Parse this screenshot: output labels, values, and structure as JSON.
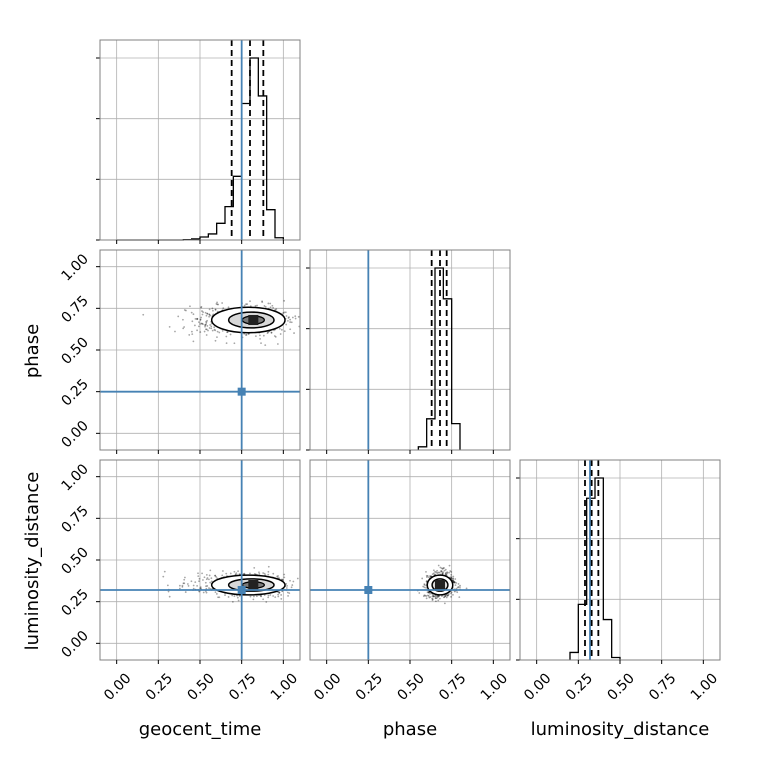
{
  "figure": {
    "type": "corner",
    "colors": {
      "truth": "#4682b4",
      "hist": "#000000",
      "quantile": "#000000",
      "grid": "#b0b0b0",
      "frame": "#808080"
    }
  },
  "chart_data": {
    "type": "corner",
    "parameters": [
      "geocent_time",
      "phase",
      "luminosity_distance"
    ],
    "axis_range": [
      -0.1,
      1.1
    ],
    "tick_labels": [
      "0.00",
      "0.25",
      "0.50",
      "0.75",
      "1.00"
    ],
    "ticks": [
      0.0,
      0.25,
      0.5,
      0.75,
      1.0
    ],
    "grid": true,
    "truths": {
      "geocent_time": 0.75,
      "phase": 0.25,
      "luminosity_distance": 0.32
    },
    "marginals": [
      {
        "parameter": "geocent_time",
        "quantiles": [
          0.69,
          0.8,
          0.88
        ],
        "bin_edges": [
          0.0,
          0.05,
          0.1,
          0.15,
          0.2,
          0.25,
          0.3,
          0.35,
          0.4,
          0.45,
          0.5,
          0.55,
          0.6,
          0.65,
          0.7,
          0.75,
          0.8,
          0.85,
          0.9,
          0.95,
          1.0
        ],
        "counts": [
          0,
          0,
          0,
          0,
          0,
          0,
          0,
          0,
          0.5,
          1.5,
          4,
          8,
          22,
          44,
          84,
          180,
          240,
          190,
          40,
          3
        ]
      },
      {
        "parameter": "phase",
        "quantiles": [
          0.63,
          0.68,
          0.72
        ],
        "bin_edges": [
          0.55,
          0.6,
          0.65,
          0.7,
          0.75,
          0.8
        ],
        "counts": [
          8,
          78,
          455,
          378,
          66
        ]
      },
      {
        "parameter": "luminosity_distance",
        "quantiles": [
          0.29,
          0.33,
          0.37
        ],
        "bin_edges": [
          0.2,
          0.25,
          0.3,
          0.35,
          0.4,
          0.45,
          0.5
        ],
        "counts": [
          3,
          22,
          64,
          72,
          16,
          1
        ]
      }
    ],
    "pairs": [
      {
        "x": "geocent_time",
        "y": "phase",
        "peak": [
          0.82,
          0.68
        ],
        "spread": [
          0.1,
          0.045
        ]
      },
      {
        "x": "geocent_time",
        "y": "luminosity_distance",
        "peak": [
          0.82,
          0.35
        ],
        "spread": [
          0.1,
          0.035
        ]
      },
      {
        "x": "phase",
        "y": "luminosity_distance",
        "peak": [
          0.68,
          0.35
        ],
        "spread": [
          0.045,
          0.035
        ]
      }
    ]
  }
}
